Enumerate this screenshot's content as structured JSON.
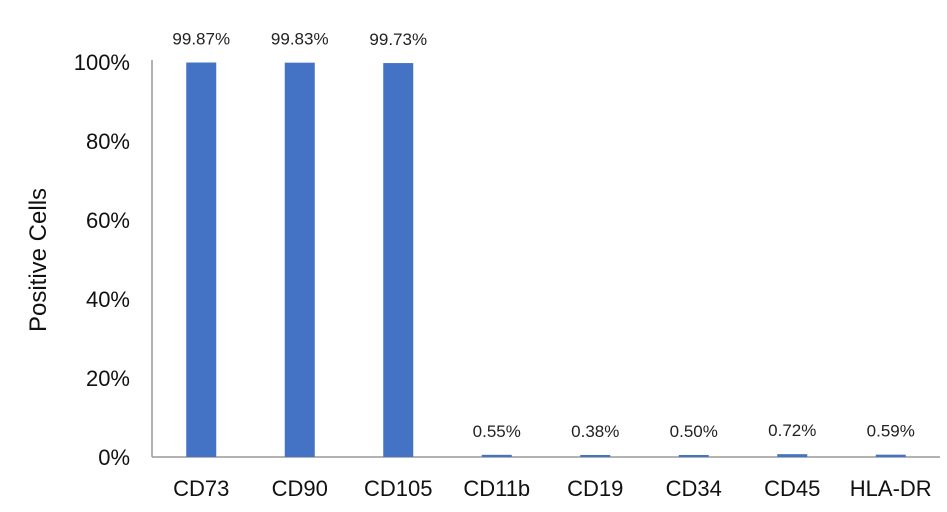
{
  "chart_data": {
    "type": "bar",
    "title": "",
    "xlabel": "",
    "ylabel": "Positive Cells",
    "categories": [
      "CD73",
      "CD90",
      "CD105",
      "CD11b",
      "CD19",
      "CD34",
      "CD45",
      "HLA-DR"
    ],
    "values": [
      99.87,
      99.83,
      99.73,
      0.55,
      0.38,
      0.5,
      0.72,
      0.59
    ],
    "data_labels": [
      "99.87%",
      "99.83%",
      "99.73%",
      "0.55%",
      "0.38%",
      "0.50%",
      "0.72%",
      "0.59%"
    ],
    "ylim": [
      0,
      100
    ],
    "yticks": [
      0,
      20,
      40,
      60,
      80,
      100
    ],
    "ytick_labels": [
      "0%",
      "20%",
      "40%",
      "60%",
      "80%",
      "100%"
    ],
    "grid": false,
    "legend": "none",
    "bar_color": "#4472C4",
    "axis_color": "#999999"
  }
}
